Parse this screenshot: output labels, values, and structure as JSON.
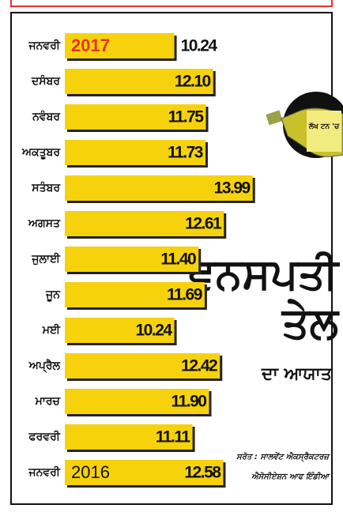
{
  "chart_data": {
    "type": "bar",
    "orientation": "horizontal",
    "title": "ਵਨਸਪਤੀ ਤੇਲ",
    "subtitle": "ਦਾ ਆਯਾਤ",
    "unit": "ਲੱਖ ਟਨ 'ਚ",
    "source": [
      "ਸਰੋਤ : ਸਾਲਵੇਂਟ ਐਕਸ੍ਰੈਕਟਰਜ਼",
      "ਐਸੋਸੀਏਸ਼ਨ ਆਫ ਇੰਡੀਆ"
    ],
    "categories": [
      "ਜਨਵਰੀ",
      "ਦਸੰਬਰ",
      "ਨਵੰਬਰ",
      "ਅਕਤੂਬਰ",
      "ਸਤੰਬਰ",
      "ਅਗਸਤ",
      "ਜੁਲਾਈ",
      "ਜੂਨ",
      "ਮਈ",
      "ਅਪ੍ਰੈਲ",
      "ਮਾਰਚ",
      "ਫਰਵਰੀ",
      "ਜਨਵਰੀ"
    ],
    "bar_texts": [
      "2017",
      null,
      null,
      null,
      null,
      null,
      null,
      null,
      null,
      null,
      null,
      null,
      "2016"
    ],
    "values": [
      10.24,
      12.1,
      11.75,
      11.73,
      13.99,
      12.61,
      11.4,
      11.69,
      10.24,
      12.42,
      11.9,
      11.11,
      12.58
    ],
    "value_labels": [
      "10.24",
      "12.10",
      "11.75",
      "11.73",
      "13.99",
      "12.61",
      "11.40",
      "11.69",
      "10.24",
      "12.42",
      "11.90",
      "11.11",
      "12.58"
    ],
    "xlim": [
      5,
      14
    ],
    "color": "#f6d20c",
    "highlight": {
      "index": 0,
      "color": "#e8312a"
    }
  }
}
